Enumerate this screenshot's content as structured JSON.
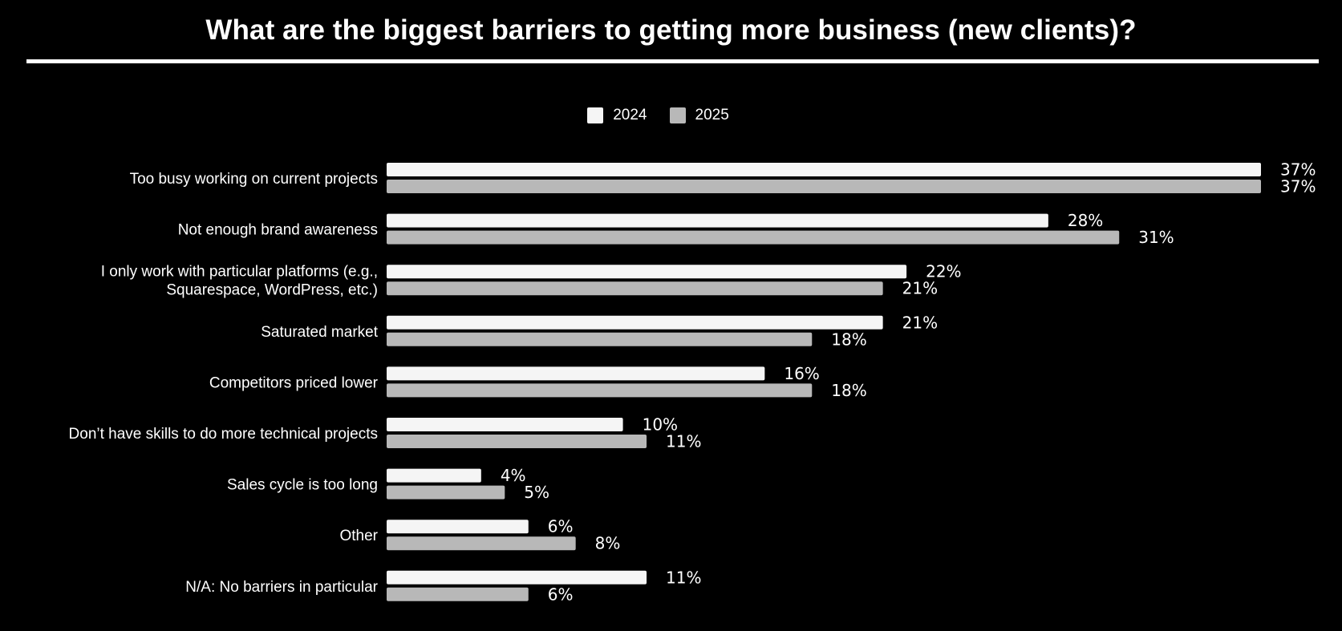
{
  "chart_data": {
    "type": "bar",
    "orientation": "horizontal",
    "title": "What are the biggest barriers to getting more business (new clients)?",
    "categories": [
      [
        "Too busy working on current projects"
      ],
      [
        "Not enough brand awareness"
      ],
      [
        "I only work with particular platforms (e.g.,",
        "Squarespace, WordPress, etc.)"
      ],
      [
        "Saturated market"
      ],
      [
        "Competitors priced lower"
      ],
      [
        "Don’t have skills to do more technical projects"
      ],
      [
        "Sales cycle is too long"
      ],
      [
        "Other"
      ],
      [
        "N/A: No barriers in particular"
      ]
    ],
    "series": [
      {
        "name": "2024",
        "color": "#f5f5f5",
        "values": [
          37,
          28,
          22,
          21,
          16,
          10,
          4,
          6,
          11
        ],
        "labels": [
          "37%",
          "28%",
          "22%",
          "21%",
          "16%",
          "10%",
          "4%",
          "6%",
          "11%"
        ]
      },
      {
        "name": "2025",
        "color": "#b8b8b8",
        "values": [
          37,
          31,
          21,
          18,
          18,
          11,
          5,
          8,
          6
        ],
        "labels": [
          "37%",
          "31%",
          "21%",
          "18%",
          "18%",
          "11%",
          "5%",
          "8%",
          "6%"
        ]
      }
    ],
    "xlim": [
      0,
      37
    ],
    "xlabel": "",
    "ylabel": "",
    "grid": false,
    "legend": "top-center"
  }
}
